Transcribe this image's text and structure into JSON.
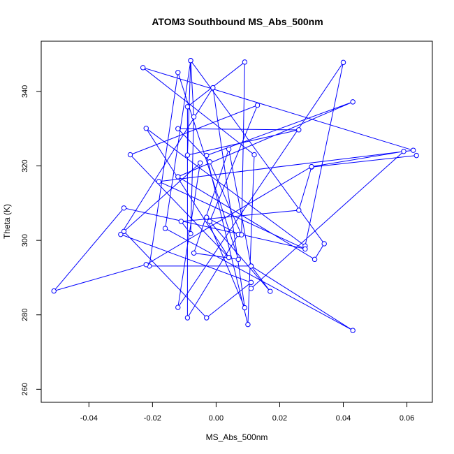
{
  "chart_data": {
    "type": "line",
    "title": "ATOM3 Southbound MS_Abs_500nm",
    "xlabel": "MS_Abs_500nm",
    "ylabel": "Theta (K)",
    "xlim": [
      -0.055,
      0.068
    ],
    "ylim": [
      256.5,
      353.5
    ],
    "x_ticks": [
      -0.04,
      -0.02,
      0.0,
      0.02,
      0.04,
      0.06
    ],
    "x_tick_labels": [
      "-0.04",
      "-0.02",
      "0.00",
      "0.02",
      "0.04",
      "0.06"
    ],
    "y_ticks": [
      260,
      280,
      300,
      320,
      340
    ],
    "y_tick_labels": [
      "260",
      "280",
      "300",
      "320",
      "340"
    ],
    "grid": false,
    "series": [
      {
        "style": "lines+points",
        "color": "#0000ff",
        "points": [
          [
            0.063,
            322.8
          ],
          [
            0.03,
            319.7
          ],
          [
            0.026,
            308.1
          ],
          [
            -0.011,
            305.1
          ],
          [
            -0.008,
            301.8
          ],
          [
            -0.007,
            333.2
          ],
          [
            -0.008,
            348.3
          ],
          [
            -0.016,
            303.2
          ],
          [
            0.043,
            275.8
          ],
          [
            0.011,
            293.1
          ],
          [
            -0.021,
            293.1
          ],
          [
            -0.012,
            345.1
          ],
          [
            0.007,
            294.9
          ],
          [
            -0.007,
            296.6
          ],
          [
            0.004,
            324.5
          ],
          [
            0.011,
            293.1
          ],
          [
            0.017,
            286.3
          ],
          [
            -0.002,
            305.1
          ],
          [
            0.013,
            336.3
          ],
          [
            -0.027,
            323.0
          ],
          [
            0.004,
            295.4
          ],
          [
            -0.022,
            330.1
          ],
          [
            0.028,
            298.5
          ],
          [
            0.04,
            347.8
          ],
          [
            -0.012,
            282.0
          ],
          [
            -0.005,
            320.8
          ],
          [
            -0.029,
            302.4
          ],
          [
            -0.003,
            279.2
          ],
          [
            0.011,
            288.7
          ],
          [
            -0.03,
            301.6
          ],
          [
            -0.001,
            341.0
          ],
          [
            0.009,
            281.9
          ],
          [
            -0.003,
            306.2
          ],
          [
            0.007,
            301.6
          ],
          [
            -0.009,
            279.2
          ],
          [
            -0.009,
            335.9
          ],
          [
            0.009,
            347.9
          ],
          [
            0.008,
            301.5
          ],
          [
            -0.002,
            321.1
          ],
          [
            -0.012,
            330.0
          ],
          [
            0.026,
            329.7
          ],
          [
            -0.009,
            322.9
          ],
          [
            -0.008,
            348.3
          ],
          [
            0.034,
            299.1
          ],
          [
            0.031,
            294.9
          ],
          [
            -0.012,
            317.1
          ],
          [
            0.043,
            337.2
          ],
          [
            -0.003,
            322.8
          ],
          [
            0.01,
            277.4
          ],
          [
            0.012,
            323.0
          ],
          [
            -0.023,
            346.4
          ],
          [
            0.062,
            324.2
          ],
          [
            -0.018,
            315.8
          ],
          [
            0.028,
            297.7
          ],
          [
            -0.029,
            308.7
          ],
          [
            -0.051,
            286.4
          ],
          [
            -0.022,
            293.5
          ],
          [
            0.03,
            319.8
          ],
          [
            0.059,
            323.9
          ],
          [
            0.011,
            287.1
          ]
        ]
      }
    ]
  }
}
